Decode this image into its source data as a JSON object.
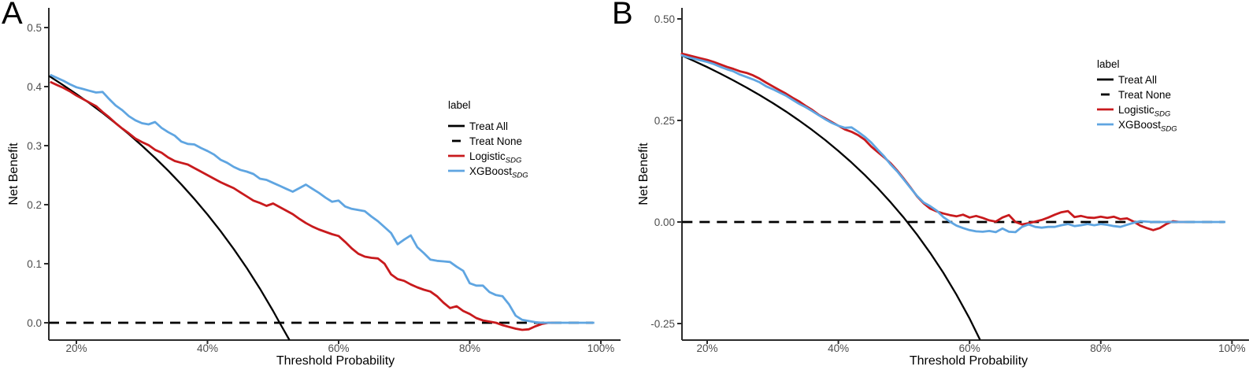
{
  "page": {
    "background": "#ffffff"
  },
  "colors": {
    "axis": "#2b2b2b",
    "tick_label": "#4d4d4d",
    "treat_all": "#000000",
    "treat_none": "#000000",
    "logistic": "#C81A1D",
    "xgboost": "#5FA5E1"
  },
  "chart_data": [
    {
      "panel_letter": "A",
      "type": "line",
      "title": "",
      "x_axis": {
        "title": "Threshold Probability",
        "unit": "percent",
        "range": [
          0.158,
          1.0
        ],
        "ticks": [
          {
            "value": 0.2,
            "label": "20%"
          },
          {
            "value": 0.4,
            "label": "40%"
          },
          {
            "value": 0.6,
            "label": "60%"
          },
          {
            "value": 0.8,
            "label": "80%"
          },
          {
            "value": 1.0,
            "label": "100%"
          }
        ]
      },
      "y_axis": {
        "title": "Net Benefit",
        "range": [
          -0.033,
          0.533
        ],
        "ticks": [
          {
            "value": 0.0,
            "label": "0.0"
          },
          {
            "value": 0.1,
            "label": "0.1"
          },
          {
            "value": 0.2,
            "label": "0.2"
          },
          {
            "value": 0.3,
            "label": "0.3"
          },
          {
            "value": 0.4,
            "label": "0.4"
          },
          {
            "value": 0.5,
            "label": "0.5"
          }
        ]
      },
      "legend": {
        "title": "label",
        "position": "inside-right",
        "items": [
          {
            "name": "Treat All",
            "subscript": "",
            "color": "#000000",
            "line_style": "solid"
          },
          {
            "name": "Treat None",
            "subscript": "",
            "color": "#000000",
            "line_style": "dashed"
          },
          {
            "name": "Logistic",
            "subscript": "SDG",
            "color": "#C81A1D",
            "line_style": "solid"
          },
          {
            "name": "XGBoost",
            "subscript": "SDG",
            "color": "#5FA5E1",
            "line_style": "solid"
          }
        ]
      },
      "series": [
        {
          "name": "Treat All",
          "subscript": "",
          "color": "#000000",
          "line_style": "solid",
          "stroke_width": 2.3,
          "points": [
            [
              0.158,
              0.4182
            ],
            [
              0.18,
              0.4024
            ],
            [
              0.2,
              0.3875
            ],
            [
              0.22,
              0.3718
            ],
            [
              0.24,
              0.3553
            ],
            [
              0.26,
              0.3378
            ],
            [
              0.28,
              0.3194
            ],
            [
              0.3,
              0.2999
            ],
            [
              0.32,
              0.2794
            ],
            [
              0.34,
              0.2576
            ],
            [
              0.36,
              0.2344
            ],
            [
              0.38,
              0.2097
            ],
            [
              0.4,
              0.1833
            ],
            [
              0.42,
              0.1552
            ],
            [
              0.44,
              0.125
            ],
            [
              0.46,
              0.0926
            ],
            [
              0.48,
              0.0577
            ],
            [
              0.5,
              0.02
            ],
            [
              0.51,
              0.0
            ],
            [
              0.525,
              -0.0293
            ]
          ]
        },
        {
          "name": "Treat None",
          "subscript": "",
          "color": "#000000",
          "line_style": "dashed",
          "stroke_width": 2.8,
          "points": [
            [
              0.158,
              0
            ],
            [
              0.988,
              0
            ]
          ]
        },
        {
          "name": "Logistic",
          "subscript": "SDG",
          "color": "#C81A1D",
          "line_style": "solid",
          "stroke_width": 2.8,
          "x_start": 0.16,
          "x_step": 0.01,
          "values": [
            0.408,
            0.403,
            0.398,
            0.392,
            0.385,
            0.379,
            0.373,
            0.367,
            0.357,
            0.348,
            0.338,
            0.329,
            0.321,
            0.312,
            0.306,
            0.301,
            0.293,
            0.288,
            0.28,
            0.274,
            0.271,
            0.268,
            0.262,
            0.256,
            0.25,
            0.244,
            0.238,
            0.233,
            0.228,
            0.221,
            0.214,
            0.207,
            0.203,
            0.198,
            0.202,
            0.196,
            0.19,
            0.184,
            0.176,
            0.169,
            0.163,
            0.158,
            0.154,
            0.15,
            0.147,
            0.137,
            0.126,
            0.117,
            0.112,
            0.11,
            0.109,
            0.1,
            0.082,
            0.074,
            0.071,
            0.065,
            0.06,
            0.056,
            0.053,
            0.045,
            0.034,
            0.025,
            0.028,
            0.02,
            0.015,
            0.008,
            0.004,
            0.002,
            0.0,
            -0.004,
            -0.007,
            -0.01,
            -0.012,
            -0.011,
            -0.006,
            -0.002,
            0.0,
            0.0
          ]
        },
        {
          "name": "XGBoost",
          "subscript": "SDG",
          "color": "#5FA5E1",
          "line_style": "solid",
          "stroke_width": 2.8,
          "x_start": 0.16,
          "x_step": 0.01,
          "values": [
            0.42,
            0.415,
            0.41,
            0.404,
            0.399,
            0.396,
            0.393,
            0.39,
            0.391,
            0.379,
            0.368,
            0.36,
            0.35,
            0.343,
            0.338,
            0.336,
            0.34,
            0.33,
            0.323,
            0.317,
            0.307,
            0.303,
            0.302,
            0.296,
            0.291,
            0.285,
            0.276,
            0.271,
            0.264,
            0.259,
            0.256,
            0.252,
            0.244,
            0.242,
            0.237,
            0.232,
            0.227,
            0.222,
            0.228,
            0.234,
            0.227,
            0.22,
            0.212,
            0.205,
            0.207,
            0.197,
            0.193,
            0.191,
            0.189,
            0.18,
            0.172,
            0.162,
            0.152,
            0.133,
            0.141,
            0.148,
            0.128,
            0.118,
            0.107,
            0.105,
            0.104,
            0.103,
            0.095,
            0.088,
            0.067,
            0.063,
            0.063,
            0.052,
            0.047,
            0.045,
            0.031,
            0.012,
            0.005,
            0.003,
            0.001,
            0.0,
            0.0,
            0.0,
            0.0,
            0.0,
            0.0,
            0.0,
            0.0,
            0.0
          ]
        }
      ]
    },
    {
      "panel_letter": "B",
      "type": "line",
      "title": "",
      "x_axis": {
        "title": "Threshold Probability",
        "unit": "percent",
        "range": [
          0.162,
          1.0
        ],
        "ticks": [
          {
            "value": 0.2,
            "label": "20%"
          },
          {
            "value": 0.4,
            "label": "40%"
          },
          {
            "value": 0.6,
            "label": "60%"
          },
          {
            "value": 0.8,
            "label": "80%"
          },
          {
            "value": 1.0,
            "label": "100%"
          }
        ]
      },
      "y_axis": {
        "title": "Net Benefit",
        "range": [
          -0.291,
          0.527
        ],
        "ticks": [
          {
            "value": -0.25,
            "label": "-0.25"
          },
          {
            "value": 0.0,
            "label": "0.00"
          },
          {
            "value": 0.25,
            "label": "0.25"
          },
          {
            "value": 0.5,
            "label": "0.50"
          }
        ]
      },
      "legend": {
        "title": "label",
        "position": "inside-right",
        "items": [
          {
            "name": "Treat All",
            "subscript": "",
            "color": "#000000",
            "line_style": "solid"
          },
          {
            "name": "Treat None",
            "subscript": "",
            "color": "#000000",
            "line_style": "dashed"
          },
          {
            "name": "Logistic",
            "subscript": "SDG",
            "color": "#C81A1D",
            "line_style": "solid"
          },
          {
            "name": "XGBoost",
            "subscript": "SDG",
            "color": "#5FA5E1",
            "line_style": "solid"
          }
        ]
      },
      "series": [
        {
          "name": "Treat All",
          "subscript": "",
          "color": "#000000",
          "line_style": "solid",
          "stroke_width": 2.3,
          "points": [
            [
              0.162,
              0.4094
            ],
            [
              0.18,
              0.3963
            ],
            [
              0.2,
              0.3813
            ],
            [
              0.22,
              0.3654
            ],
            [
              0.24,
              0.3487
            ],
            [
              0.26,
              0.3311
            ],
            [
              0.28,
              0.3125
            ],
            [
              0.3,
              0.2929
            ],
            [
              0.32,
              0.2721
            ],
            [
              0.34,
              0.25
            ],
            [
              0.36,
              0.2266
            ],
            [
              0.38,
              0.2017
            ],
            [
              0.4,
              0.175
            ],
            [
              0.42,
              0.1466
            ],
            [
              0.44,
              0.1161
            ],
            [
              0.46,
              0.0833
            ],
            [
              0.48,
              0.0481
            ],
            [
              0.5,
              0.01
            ],
            [
              0.52,
              -0.0313
            ],
            [
              0.54,
              -0.0761
            ],
            [
              0.56,
              -0.125
            ],
            [
              0.58,
              -0.1786
            ],
            [
              0.6,
              -0.2375
            ],
            [
              0.616,
              -0.29
            ]
          ]
        },
        {
          "name": "Treat None",
          "subscript": "",
          "color": "#000000",
          "line_style": "dashed",
          "stroke_width": 2.8,
          "points": [
            [
              0.162,
              0
            ],
            [
              0.988,
              0
            ]
          ]
        },
        {
          "name": "Logistic",
          "subscript": "SDG",
          "color": "#C81A1D",
          "line_style": "solid",
          "stroke_width": 2.8,
          "x_start": 0.16,
          "x_step": 0.01,
          "values": [
            0.415,
            0.411,
            0.407,
            0.403,
            0.399,
            0.394,
            0.388,
            0.382,
            0.377,
            0.371,
            0.367,
            0.361,
            0.353,
            0.343,
            0.334,
            0.325,
            0.316,
            0.306,
            0.297,
            0.286,
            0.276,
            0.264,
            0.255,
            0.246,
            0.237,
            0.228,
            0.222,
            0.214,
            0.203,
            0.186,
            0.172,
            0.159,
            0.144,
            0.126,
            0.106,
            0.085,
            0.063,
            0.046,
            0.033,
            0.026,
            0.021,
            0.017,
            0.014,
            0.018,
            0.011,
            0.015,
            0.01,
            0.004,
            0.001,
            0.011,
            0.017,
            0.0,
            -0.006,
            -0.003,
            0.001,
            0.005,
            0.011,
            0.018,
            0.024,
            0.027,
            0.012,
            0.015,
            0.011,
            0.01,
            0.013,
            0.01,
            0.013,
            0.007,
            0.009,
            0.001,
            -0.009,
            -0.015,
            -0.02,
            -0.015,
            -0.005,
            0.002,
            0.0,
            0.0
          ]
        },
        {
          "name": "XGBoost",
          "subscript": "SDG",
          "color": "#5FA5E1",
          "line_style": "solid",
          "stroke_width": 2.8,
          "x_start": 0.16,
          "x_step": 0.01,
          "values": [
            0.411,
            0.406,
            0.402,
            0.398,
            0.394,
            0.389,
            0.382,
            0.376,
            0.371,
            0.363,
            0.357,
            0.351,
            0.344,
            0.334,
            0.327,
            0.319,
            0.311,
            0.301,
            0.291,
            0.283,
            0.273,
            0.263,
            0.253,
            0.244,
            0.237,
            0.232,
            0.233,
            0.222,
            0.21,
            0.196,
            0.178,
            0.161,
            0.141,
            0.124,
            0.104,
            0.084,
            0.064,
            0.048,
            0.039,
            0.028,
            0.012,
            0.001,
            -0.009,
            -0.015,
            -0.02,
            -0.023,
            -0.024,
            -0.022,
            -0.025,
            -0.016,
            -0.024,
            -0.025,
            -0.012,
            -0.006,
            -0.012,
            -0.014,
            -0.012,
            -0.012,
            -0.008,
            -0.005,
            -0.01,
            -0.008,
            -0.005,
            -0.008,
            -0.005,
            -0.007,
            -0.01,
            -0.012,
            -0.007,
            -0.002,
            0.002,
            0.001,
            0.0,
            0.0,
            0.0,
            0.0,
            0.0,
            0.0,
            0.0,
            0.0,
            0.0,
            0.0,
            0.0,
            0.0
          ]
        }
      ]
    }
  ]
}
